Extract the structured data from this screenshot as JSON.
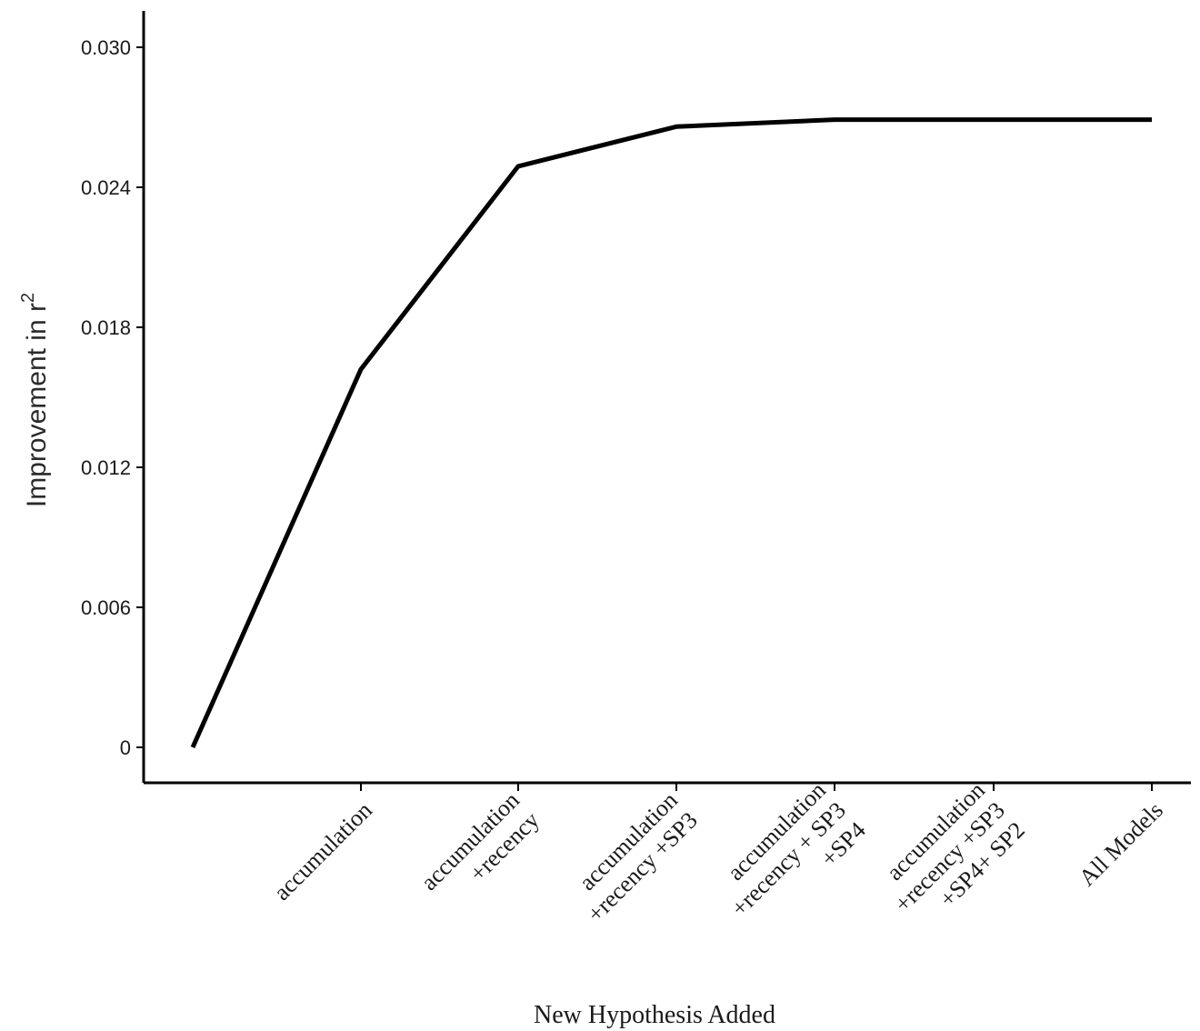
{
  "chart_data": {
    "type": "line",
    "title": "",
    "xlabel": "New Hypothesis Added",
    "ylabel": "Improvement in r",
    "ylabel_superscript": "2",
    "categories": [
      "",
      "accumulation",
      "accumulation\n+recency",
      "accumulation\n+recency +SP3",
      "accumulation\n+recency + SP3\n+SP4",
      "accumulation\n+recency +SP3\n+SP4+ SP2",
      "All Models"
    ],
    "series": [
      {
        "values": [
          0.0,
          0.0162,
          0.0249,
          0.0266,
          0.0269,
          0.0269,
          0.0269
        ],
        "color": "#000000"
      }
    ],
    "yticks": [
      0,
      0.006,
      0.012,
      0.018,
      0.024,
      0.03
    ],
    "ytick_labels": [
      "0",
      "0.006",
      "0.012",
      "0.018",
      "0.024",
      "0.030"
    ],
    "ylim": [
      -0.0015,
      0.0315
    ],
    "grid": false,
    "legend": "none"
  }
}
